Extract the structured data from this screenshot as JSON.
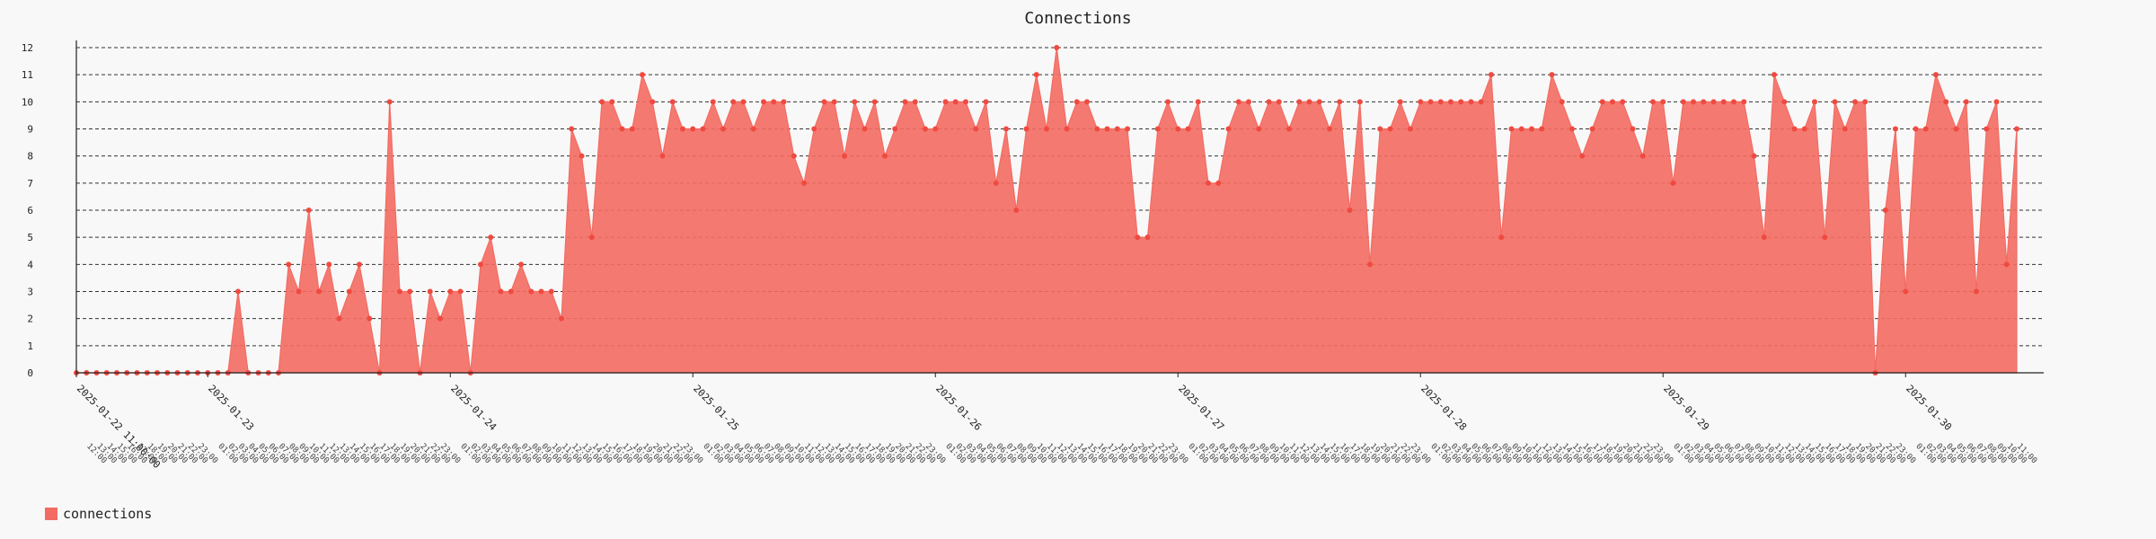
{
  "chart_data": {
    "type": "area",
    "title": "Connections",
    "xlabel": "",
    "ylabel": "",
    "ylim": [
      0,
      12
    ],
    "yticks": [
      0,
      1,
      2,
      3,
      4,
      5,
      6,
      7,
      8,
      9,
      10,
      11,
      12
    ],
    "x_start": "2025-01-22 11:00",
    "x_step_hours": 1,
    "x_major_labels": [
      {
        "label": "2025-01-22 11:00:00",
        "x": "2025-01-22 11:00"
      },
      {
        "label": "2025-01-23",
        "x": "2025-01-23 00:00"
      },
      {
        "label": "2025-01-24",
        "x": "2025-01-24 00:00"
      },
      {
        "label": "2025-01-25",
        "x": "2025-01-25 00:00"
      },
      {
        "label": "2025-01-26",
        "x": "2025-01-26 00:00"
      },
      {
        "label": "2025-01-27",
        "x": "2025-01-27 00:00"
      },
      {
        "label": "2025-01-28",
        "x": "2025-01-28 00:00"
      },
      {
        "label": "2025-01-29",
        "x": "2025-01-29 00:00"
      },
      {
        "label": "2025-01-30",
        "x": "2025-01-30 00:00"
      }
    ],
    "series": [
      {
        "name": "connections",
        "color": "#f36b62",
        "values": [
          0,
          0,
          0,
          0,
          0,
          0,
          0,
          0,
          0,
          0,
          0,
          0,
          0,
          0,
          0,
          0,
          3,
          0,
          0,
          0,
          0,
          4,
          3,
          6,
          3,
          4,
          2,
          3,
          4,
          2,
          0,
          10,
          3,
          3,
          0,
          3,
          2,
          3,
          3,
          0,
          4,
          5,
          3,
          3,
          4,
          3,
          3,
          3,
          2,
          9,
          8,
          5,
          10,
          10,
          9,
          9,
          11,
          10,
          8,
          10,
          9,
          9,
          9,
          10,
          9,
          10,
          10,
          9,
          10,
          10,
          10,
          8,
          7,
          9,
          10,
          10,
          8,
          10,
          9,
          10,
          8,
          9,
          10,
          10,
          9,
          9,
          10,
          10,
          10,
          9,
          10,
          7,
          9,
          6,
          9,
          11,
          9,
          12,
          9,
          10,
          10,
          9,
          9,
          9,
          9,
          5,
          5,
          9,
          10,
          9,
          9,
          10,
          7,
          7,
          9,
          10,
          10,
          9,
          10,
          10,
          9,
          10,
          10,
          10,
          9,
          10,
          6,
          10,
          4,
          9,
          9,
          10,
          9,
          10,
          10,
          10,
          10,
          10,
          10,
          10,
          11,
          5,
          9,
          9,
          9,
          9,
          11,
          10,
          9,
          8,
          9,
          10,
          10,
          10,
          9,
          8,
          10,
          10,
          7,
          10,
          10,
          10,
          10,
          10,
          10,
          10,
          8,
          5,
          11,
          10,
          9,
          9,
          10,
          5,
          10,
          9,
          10,
          10,
          0,
          6,
          9,
          3,
          9,
          9,
          11,
          10,
          9,
          10,
          3,
          9,
          10,
          4,
          9
        ]
      }
    ],
    "grid": true,
    "legend_position": "bottom-left"
  }
}
